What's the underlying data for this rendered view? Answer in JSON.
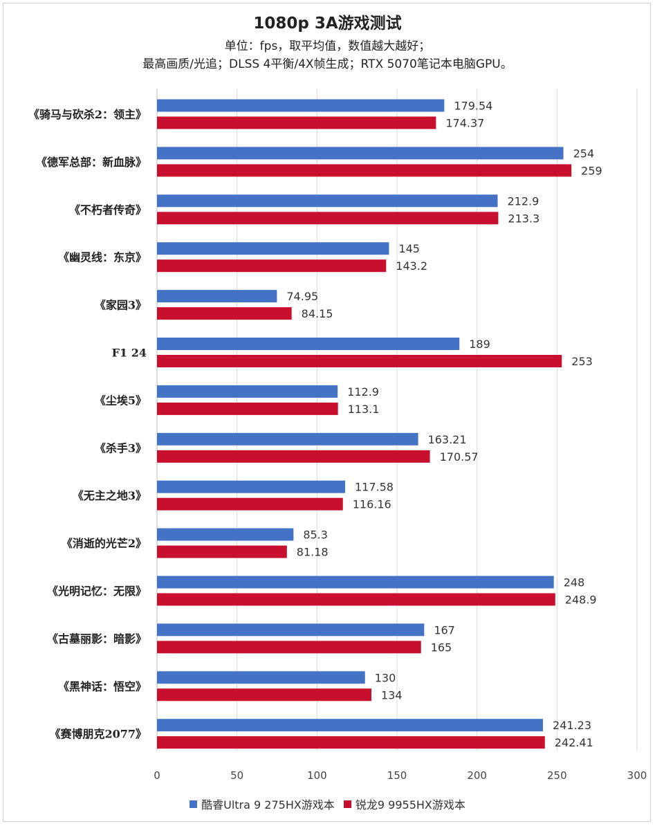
{
  "chart_data": {
    "type": "bar",
    "orientation": "horizontal",
    "title": "1080p 3A游戏测试",
    "subtitle_lines": [
      "单位：fps，取平均值，数值越大越好；",
      "最高画质/光追；DLSS 4平衡/4X帧生成；RTX 5070笔记本电脑GPU。"
    ],
    "categories": [
      "《骑马与砍杀2：领主》",
      "《德军总部：新血脉》",
      "《不朽者传奇》",
      "《幽灵线：东京》",
      "《家园3》",
      "F1 24",
      "《尘埃5》",
      "《杀手3》",
      "《无主之地3》",
      "《消逝的光芒2》",
      "《光明记忆：无限》",
      "《古墓丽影：暗影》",
      "《黑神话：悟空》",
      "《赛博朋克2077》"
    ],
    "series": [
      {
        "name": "酷睿Ultra 9 275HX游戏本",
        "color": "#4472C4",
        "values": [
          179.54,
          254,
          212.9,
          145,
          74.95,
          189,
          112.9,
          163.21,
          117.58,
          85.3,
          248,
          167,
          130,
          241.23
        ],
        "labels": [
          "179.54",
          "254",
          "212.9",
          "145",
          "74.95",
          "189",
          "112.9",
          "163.21",
          "117.58",
          "85.3",
          "248",
          "167",
          "130",
          "241.23"
        ]
      },
      {
        "name": "锐龙9 9955HX游戏本",
        "color": "#C8102E",
        "values": [
          174.37,
          259,
          213.3,
          143.2,
          84.15,
          253,
          113.1,
          170.57,
          116.16,
          81.18,
          248.9,
          165,
          134,
          242.41
        ],
        "labels": [
          "174.37",
          "259",
          "213.3",
          "143.2",
          "84.15",
          "253",
          "113.1",
          "170.57",
          "116.16",
          "81.18",
          "248.9",
          "165",
          "134",
          "242.41"
        ]
      }
    ],
    "xlim": [
      0,
      300
    ],
    "xticks": [
      0,
      50,
      100,
      150,
      200,
      250,
      300
    ],
    "xlabel": "",
    "ylabel": "",
    "grid": "vertical",
    "legend": "bottom"
  }
}
